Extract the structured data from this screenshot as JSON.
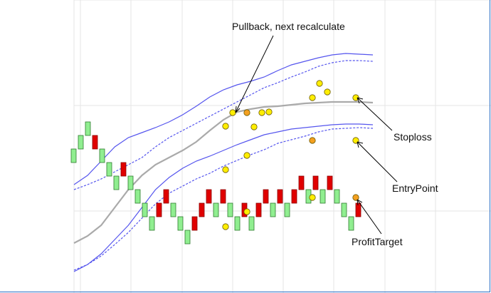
{
  "chart_data": {
    "type": "line",
    "renko_bricks": [
      {
        "x": 1,
        "top": 202,
        "bottom": 183,
        "dir": "up"
      },
      {
        "x": 2,
        "top": 221,
        "bottom": 202,
        "dir": "up"
      },
      {
        "x": 3,
        "top": 240,
        "bottom": 221,
        "dir": "up"
      },
      {
        "x": 4,
        "top": 221,
        "bottom": 202,
        "dir": "down"
      },
      {
        "x": 5,
        "top": 202,
        "bottom": 183,
        "dir": "up"
      },
      {
        "x": 6,
        "top": 183,
        "bottom": 164,
        "dir": "up"
      },
      {
        "x": 7,
        "top": 164,
        "bottom": 145,
        "dir": "up"
      },
      {
        "x": 8,
        "top": 183,
        "bottom": 164,
        "dir": "down"
      },
      {
        "x": 9,
        "top": 164,
        "bottom": 145,
        "dir": "up"
      },
      {
        "x": 10,
        "top": 145,
        "bottom": 126,
        "dir": "up"
      },
      {
        "x": 11,
        "top": 126,
        "bottom": 107,
        "dir": "up"
      },
      {
        "x": 12,
        "top": 107,
        "bottom": 88,
        "dir": "up"
      },
      {
        "x": 13,
        "top": 126,
        "bottom": 107,
        "dir": "down"
      },
      {
        "x": 14,
        "top": 145,
        "bottom": 126,
        "dir": "down"
      },
      {
        "x": 15,
        "top": 126,
        "bottom": 107,
        "dir": "up"
      },
      {
        "x": 16,
        "top": 107,
        "bottom": 88,
        "dir": "up"
      },
      {
        "x": 17,
        "top": 88,
        "bottom": 69,
        "dir": "up"
      },
      {
        "x": 18,
        "top": 107,
        "bottom": 88,
        "dir": "down"
      },
      {
        "x": 19,
        "top": 126,
        "bottom": 107,
        "dir": "down"
      },
      {
        "x": 20,
        "top": 145,
        "bottom": 126,
        "dir": "down"
      },
      {
        "x": 21,
        "top": 126,
        "bottom": 107,
        "dir": "up"
      },
      {
        "x": 22,
        "top": 145,
        "bottom": 126,
        "dir": "down"
      },
      {
        "x": 23,
        "top": 126,
        "bottom": 107,
        "dir": "up"
      },
      {
        "x": 24,
        "top": 107,
        "bottom": 88,
        "dir": "up"
      },
      {
        "x": 25,
        "top": 126,
        "bottom": 107,
        "dir": "down"
      },
      {
        "x": 26,
        "top": 107,
        "bottom": 88,
        "dir": "up"
      },
      {
        "x": 27,
        "top": 126,
        "bottom": 107,
        "dir": "down"
      },
      {
        "x": 28,
        "top": 145,
        "bottom": 126,
        "dir": "down"
      },
      {
        "x": 29,
        "top": 126,
        "bottom": 107,
        "dir": "up"
      },
      {
        "x": 30,
        "top": 145,
        "bottom": 126,
        "dir": "down"
      },
      {
        "x": 31,
        "top": 126,
        "bottom": 107,
        "dir": "up"
      },
      {
        "x": 32,
        "top": 145,
        "bottom": 126,
        "dir": "down"
      },
      {
        "x": 33,
        "top": 164,
        "bottom": 145,
        "dir": "down"
      },
      {
        "x": 34,
        "top": 145,
        "bottom": 126,
        "dir": "up"
      },
      {
        "x": 35,
        "top": 164,
        "bottom": 145,
        "dir": "down"
      },
      {
        "x": 36,
        "top": 145,
        "bottom": 126,
        "dir": "up"
      },
      {
        "x": 37,
        "top": 164,
        "bottom": 145,
        "dir": "down"
      },
      {
        "x": 38,
        "top": 145,
        "bottom": 126,
        "dir": "up"
      },
      {
        "x": 39,
        "top": 126,
        "bottom": 107,
        "dir": "up"
      },
      {
        "x": 40,
        "top": 107,
        "bottom": 88,
        "dir": "up"
      },
      {
        "x": 41,
        "top": 126,
        "bottom": 107,
        "dir": "down"
      }
    ],
    "lines": [
      {
        "id": "gray-ma",
        "style": "solid",
        "points": [
          [
            0,
            70
          ],
          [
            4,
            80
          ],
          [
            8,
            95
          ],
          [
            12,
            120
          ],
          [
            16,
            145
          ],
          [
            20,
            165
          ],
          [
            24,
            180
          ],
          [
            28,
            190
          ],
          [
            32,
            200
          ],
          [
            36,
            212
          ],
          [
            40,
            228
          ],
          [
            44,
            243
          ],
          [
            48,
            254
          ],
          [
            52,
            258
          ],
          [
            56,
            261
          ],
          [
            60,
            262
          ],
          [
            64,
            264
          ],
          [
            68,
            266
          ],
          [
            72,
            267
          ],
          [
            76,
            268
          ],
          [
            80,
            268
          ],
          [
            84,
            268
          ],
          [
            88,
            267
          ]
        ]
      },
      {
        "id": "upper-band",
        "style": "solid",
        "points": [
          [
            0,
            152
          ],
          [
            4,
            165
          ],
          [
            8,
            185
          ],
          [
            12,
            205
          ],
          [
            16,
            218
          ],
          [
            20,
            225
          ],
          [
            24,
            232
          ],
          [
            28,
            240
          ],
          [
            32,
            250
          ],
          [
            36,
            262
          ],
          [
            40,
            275
          ],
          [
            44,
            285
          ],
          [
            48,
            292
          ],
          [
            52,
            297
          ],
          [
            56,
            303
          ],
          [
            60,
            312
          ],
          [
            64,
            320
          ],
          [
            68,
            325
          ],
          [
            72,
            330
          ],
          [
            76,
            334
          ],
          [
            80,
            336
          ],
          [
            84,
            335
          ],
          [
            88,
            334
          ]
        ]
      },
      {
        "id": "upper-dashed",
        "style": "dashed",
        "points": [
          [
            0,
            145
          ],
          [
            4,
            152
          ],
          [
            8,
            160
          ],
          [
            12,
            170
          ],
          [
            16,
            180
          ],
          [
            20,
            190
          ],
          [
            24,
            205
          ],
          [
            28,
            218
          ],
          [
            32,
            228
          ],
          [
            36,
            238
          ],
          [
            40,
            248
          ],
          [
            44,
            258
          ],
          [
            48,
            268
          ],
          [
            52,
            278
          ],
          [
            56,
            288
          ],
          [
            60,
            295
          ],
          [
            64,
            303
          ],
          [
            68,
            310
          ],
          [
            72,
            318
          ],
          [
            76,
            323
          ],
          [
            80,
            326
          ],
          [
            84,
            326
          ],
          [
            88,
            325
          ]
        ]
      },
      {
        "id": "lower-band",
        "style": "solid",
        "points": [
          [
            0,
            30
          ],
          [
            4,
            40
          ],
          [
            8,
            55
          ],
          [
            12,
            75
          ],
          [
            16,
            95
          ],
          [
            20,
            120
          ],
          [
            24,
            145
          ],
          [
            28,
            162
          ],
          [
            32,
            175
          ],
          [
            36,
            185
          ],
          [
            40,
            192
          ],
          [
            44,
            200
          ],
          [
            48,
            208
          ],
          [
            52,
            215
          ],
          [
            56,
            222
          ],
          [
            60,
            226
          ],
          [
            64,
            230
          ],
          [
            68,
            232
          ],
          [
            72,
            234
          ],
          [
            76,
            236
          ],
          [
            80,
            237
          ],
          [
            84,
            237
          ],
          [
            88,
            236
          ]
        ]
      },
      {
        "id": "lower-dashed",
        "style": "dashed",
        "points": [
          [
            0,
            32
          ],
          [
            4,
            40
          ],
          [
            8,
            52
          ],
          [
            12,
            68
          ],
          [
            16,
            85
          ],
          [
            20,
            105
          ],
          [
            24,
            125
          ],
          [
            28,
            140
          ],
          [
            32,
            150
          ],
          [
            36,
            160
          ],
          [
            40,
            168
          ],
          [
            44,
            178
          ],
          [
            48,
            186
          ],
          [
            52,
            194
          ],
          [
            56,
            201
          ],
          [
            60,
            210
          ],
          [
            64,
            215
          ],
          [
            68,
            220
          ],
          [
            72,
            226
          ],
          [
            76,
            230
          ],
          [
            80,
            231
          ],
          [
            84,
            232
          ],
          [
            88,
            231
          ]
        ]
      }
    ],
    "markers": [
      {
        "label_ref": "stop",
        "x": 36,
        "y": 247,
        "color": "yellow"
      },
      {
        "label_ref": "stop",
        "x": 37,
        "y": 240,
        "color": "yellow"
      },
      {
        "label_ref": "stop",
        "x": 39,
        "y": 255,
        "color": "orange"
      },
      {
        "label_ref": "stop",
        "x": 40,
        "y": 275,
        "color": "yellow"
      },
      {
        "label_ref": "entry",
        "x": 36,
        "y": 169,
        "color": "yellow"
      },
      {
        "label_ref": "entry",
        "x": 40,
        "y": 193,
        "color": "yellow"
      },
      {
        "label_ref": "entry",
        "x": 48,
        "y": 206,
        "color": "yellow"
      },
      {
        "label_ref": "entry",
        "x": 56,
        "y": 210,
        "color": "yellow"
      },
      {
        "label_ref": "target",
        "x": 36,
        "y": 90,
        "color": "yellow"
      },
      {
        "label_ref": "target",
        "x": 40,
        "y": 112,
        "color": "yellow"
      },
      {
        "label_ref": "target",
        "x": 48,
        "y": 130,
        "color": "yellow"
      },
      {
        "label_ref": "target",
        "x": 56,
        "y": 132,
        "color": "yellow"
      },
      {
        "label_ref": "stop",
        "x": 42,
        "y": 252,
        "color": "orange"
      },
      {
        "label_ref": "stop",
        "x": 44,
        "y": 250,
        "color": "yellow"
      },
      {
        "label_ref": "stop",
        "x": 47,
        "y": 273,
        "color": "yellow"
      },
      {
        "label_ref": "stop",
        "x": 50,
        "y": 292,
        "color": "orange"
      },
      {
        "label_ref": "stop",
        "x": 51,
        "y": 275,
        "color": "yellow"
      },
      {
        "label_ref": "stop",
        "x": 56,
        "y": 275,
        "color": "yellow"
      }
    ],
    "xlim": [
      0,
      88
    ],
    "ylim": [
      0,
      411
    ],
    "grid": true,
    "annotations": [
      {
        "text": "Pullback, next recalculate",
        "points_to": "pullback"
      },
      {
        "text": "Stoploss",
        "points_to": "stop"
      },
      {
        "text": "EntryPoint",
        "points_to": "entry"
      },
      {
        "text": "ProfitTarget",
        "points_to": "target"
      }
    ]
  },
  "colors": {
    "up_brick": "#90ee90",
    "down_brick": "#e00000",
    "band": "#5555ee",
    "ma": "#aaaaaa",
    "marker_yellow": "#ffee00",
    "marker_orange": "#f4a020",
    "grid": "#e4e4e4"
  }
}
